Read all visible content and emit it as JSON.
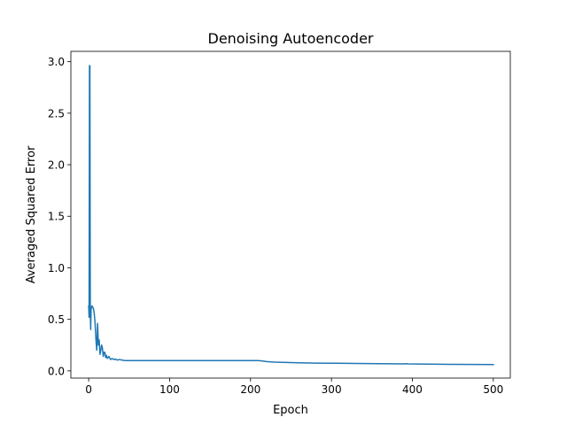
{
  "chart_data": {
    "type": "line",
    "title": "Denoising Autoencoder",
    "xlabel": "Epoch",
    "ylabel": "Averaged Squared Error",
    "xlim": [
      -22,
      521
    ],
    "ylim": [
      -0.07,
      3.1
    ],
    "xticks": [
      0,
      100,
      200,
      300,
      400,
      500
    ],
    "xtick_labels": [
      "0",
      "100",
      "200",
      "300",
      "400",
      "500"
    ],
    "yticks": [
      0.0,
      0.5,
      1.0,
      1.5,
      2.0,
      2.5,
      3.0
    ],
    "ytick_labels": [
      "0.0",
      "0.5",
      "1.0",
      "1.5",
      "2.0",
      "2.5",
      "3.0"
    ],
    "grid": false,
    "legend": "none",
    "line_color": "#1f77b4",
    "series": [
      {
        "x": [
          0,
          0.5,
          1,
          1.5,
          2,
          2.5,
          3,
          4,
          5,
          6,
          7,
          8,
          9,
          10,
          11,
          12,
          13,
          14,
          15,
          16,
          17,
          18,
          19,
          20,
          21,
          22,
          23,
          25,
          27,
          29,
          31,
          33,
          35,
          38,
          41,
          45,
          50,
          60,
          80,
          100,
          150,
          200,
          210,
          215,
          220,
          230,
          240,
          260,
          280,
          300,
          330,
          360,
          390,
          392,
          395,
          420,
          450,
          480,
          500
        ],
        "y": [
          0.63,
          0.52,
          2.96,
          2.96,
          0.58,
          0.4,
          0.6,
          0.63,
          0.62,
          0.6,
          0.55,
          0.45,
          0.3,
          0.2,
          0.46,
          0.25,
          0.3,
          0.16,
          0.2,
          0.25,
          0.22,
          0.14,
          0.18,
          0.18,
          0.13,
          0.15,
          0.12,
          0.14,
          0.11,
          0.12,
          0.11,
          0.115,
          0.105,
          0.11,
          0.105,
          0.1,
          0.1,
          0.1,
          0.1,
          0.1,
          0.1,
          0.1,
          0.1,
          0.095,
          0.09,
          0.085,
          0.082,
          0.078,
          0.075,
          0.074,
          0.072,
          0.07,
          0.068,
          0.07,
          0.067,
          0.065,
          0.063,
          0.062,
          0.061
        ]
      }
    ]
  }
}
